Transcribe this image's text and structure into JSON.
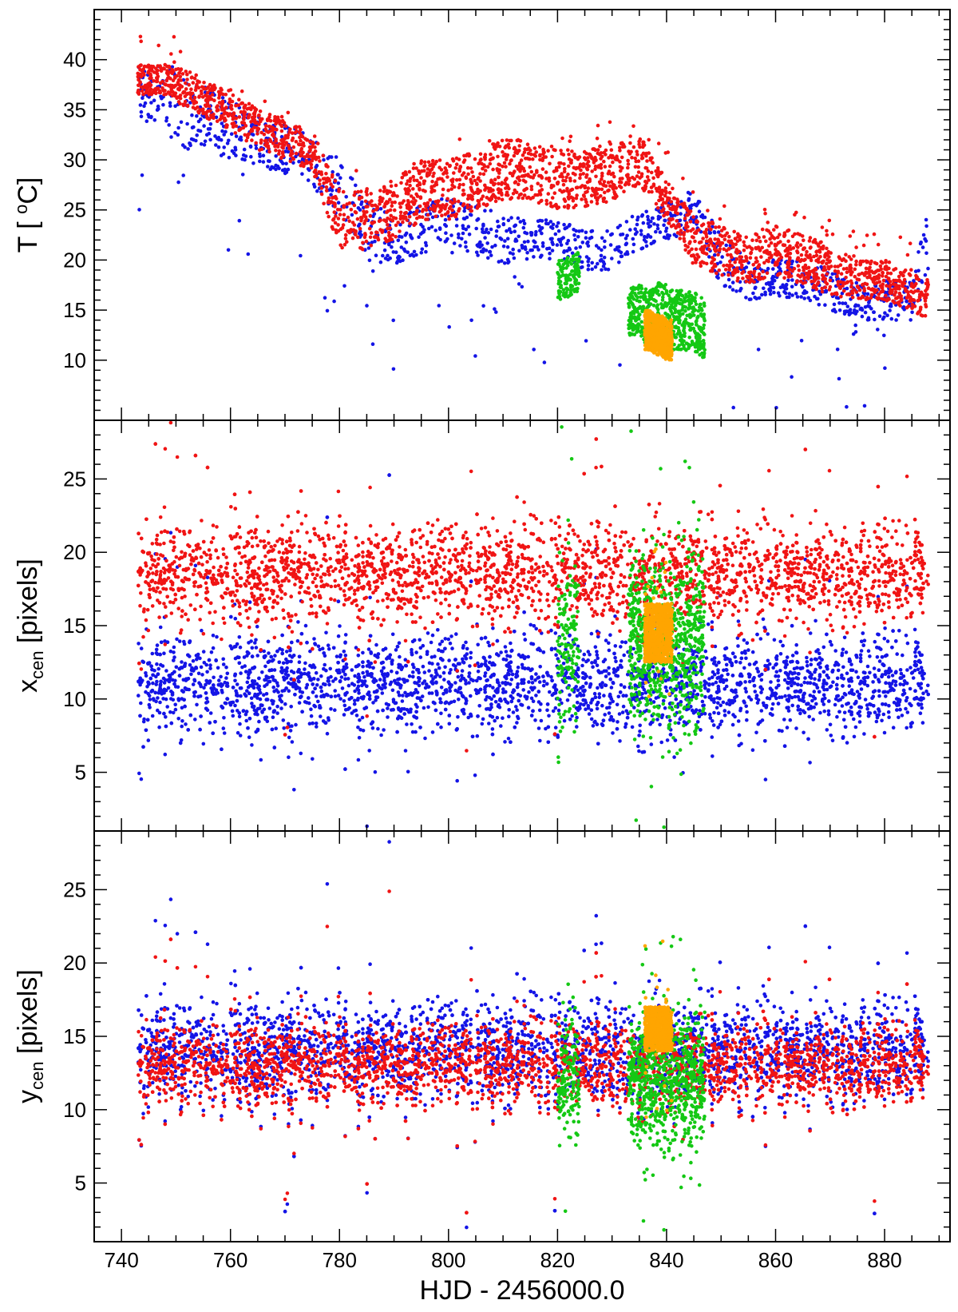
{
  "figure": {
    "xlabel": "HJD - 2456000.0",
    "x_ticks": [
      "740",
      "760",
      "780",
      "800",
      "820",
      "840",
      "860",
      "880"
    ],
    "xlim": [
      735,
      892
    ],
    "colors": {
      "blue": "#1414e6",
      "red": "#f01414",
      "green": "#14c814",
      "orange": "#ffa500"
    }
  },
  "chart_data": [
    {
      "type": "scatter",
      "panel": "temperature",
      "ylabel_main": "T [ ",
      "ylabel_deg": "o",
      "ylabel_unit": "C]",
      "ylim": [
        4,
        45
      ],
      "y_ticks": [
        "10",
        "15",
        "20",
        "25",
        "30",
        "35",
        "40"
      ],
      "series": [
        {
          "name": "blue",
          "color": "#1414e6",
          "x": [
            743,
            748,
            752,
            756,
            760,
            765,
            770,
            775,
            780,
            785,
            790,
            795,
            800,
            805,
            810,
            815,
            820,
            825,
            830,
            835,
            840,
            845,
            850,
            855,
            860,
            865,
            870,
            875,
            880,
            885,
            888
          ],
          "y": [
            37,
            36,
            35,
            34,
            33,
            32,
            31,
            30,
            27,
            23,
            22,
            23,
            24,
            23,
            22,
            22,
            22,
            21,
            21,
            23,
            24,
            25,
            20,
            18,
            18,
            18,
            17,
            16,
            16,
            16,
            22
          ],
          "spread": [
            2.5,
            3.5,
            4,
            3,
            3,
            2.5,
            2.5,
            2.5,
            3,
            3,
            2.5,
            2.5,
            2.5,
            2.5,
            2.5,
            2,
            2,
            2,
            2,
            2,
            2,
            2,
            2.5,
            2,
            2,
            2,
            2,
            2,
            2,
            2,
            4
          ]
        },
        {
          "name": "red",
          "color": "#f01414",
          "x": [
            743,
            748,
            752,
            756,
            760,
            765,
            770,
            775,
            780,
            785,
            790,
            795,
            800,
            805,
            810,
            815,
            820,
            825,
            830,
            835,
            840,
            845,
            850,
            855,
            860,
            865,
            870,
            875,
            880,
            885,
            888
          ],
          "y": [
            38,
            38,
            37,
            36,
            35,
            33,
            32,
            31,
            24,
            24,
            25,
            27,
            27,
            28,
            29,
            29,
            28,
            28,
            29,
            30,
            26,
            22,
            21,
            20,
            21,
            20,
            19,
            18,
            18,
            17,
            16
          ],
          "spread": [
            1.5,
            1.5,
            2,
            2,
            2,
            2,
            2,
            2,
            3,
            3,
            3,
            3,
            3,
            3,
            3,
            3,
            3,
            3,
            3,
            2.5,
            2,
            2.5,
            2.5,
            2.5,
            2.5,
            2.5,
            2.5,
            2,
            2,
            2,
            2
          ]
        },
        {
          "name": "green",
          "color": "#14c814",
          "x": [
            821,
            824,
            833,
            835,
            837,
            839,
            841,
            843,
            845,
            847
          ],
          "y": [
            18,
            19,
            15,
            15,
            14,
            15,
            14,
            14,
            14,
            13
          ],
          "spread": [
            2,
            2,
            2.5,
            2.5,
            3,
            3,
            3,
            3,
            3,
            3
          ]
        },
        {
          "name": "orange",
          "color": "#ffa500",
          "x": [
            836,
            837,
            838,
            839,
            840,
            841
          ],
          "y": [
            13,
            13,
            12.5,
            12.5,
            12,
            12
          ],
          "spread": [
            2,
            2,
            2,
            2,
            2,
            2
          ]
        }
      ]
    },
    {
      "type": "scatter",
      "panel": "xcen",
      "ylabel_main": "x",
      "ylabel_sub": "cen",
      "ylabel_unit": " [pixels]",
      "ylim": [
        1,
        29
      ],
      "y_ticks": [
        "5",
        "10",
        "15",
        "20",
        "25"
      ],
      "series": [
        {
          "name": "blue",
          "color": "#1414e6",
          "center": 11,
          "spread": 3,
          "xrange": [
            743,
            888
          ]
        },
        {
          "name": "red",
          "color": "#f01414",
          "center": 18.5,
          "spread": 3,
          "xrange": [
            743,
            888
          ]
        },
        {
          "name": "green",
          "color": "#14c814",
          "center": 14,
          "spread": 5,
          "xrange": [
            821,
            848
          ]
        },
        {
          "name": "orange",
          "color": "#ffa500",
          "center": 14.5,
          "spread": 2,
          "xrange": [
            836,
            841
          ]
        }
      ]
    },
    {
      "type": "scatter",
      "panel": "ycen",
      "ylabel_main": "y",
      "ylabel_sub": "cen",
      "ylabel_unit": " [pixels]",
      "ylim": [
        1,
        29
      ],
      "y_ticks": [
        "5",
        "10",
        "15",
        "20",
        "25"
      ],
      "series": [
        {
          "name": "blue",
          "color": "#1414e6",
          "center": 14,
          "spread": 3,
          "xrange": [
            743,
            888
          ]
        },
        {
          "name": "red",
          "color": "#f01414",
          "center": 13,
          "spread": 2.5,
          "xrange": [
            743,
            888
          ]
        },
        {
          "name": "green",
          "color": "#14c814",
          "center": 12,
          "spread": 4,
          "xrange": [
            821,
            848
          ]
        },
        {
          "name": "orange",
          "color": "#ffa500",
          "center": 15.5,
          "spread": 1.5,
          "xrange": [
            836,
            841
          ]
        }
      ]
    }
  ]
}
